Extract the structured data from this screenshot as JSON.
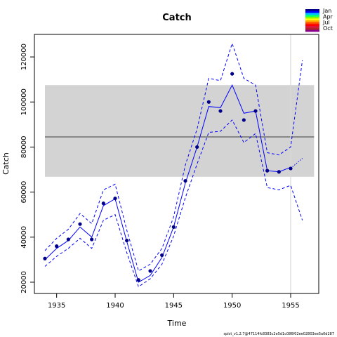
{
  "chart_data": {
    "type": "line",
    "title": "Catch",
    "xlabel": "Time",
    "ylabel": "Catch",
    "xlim": [
      1933.1,
      1957.4
    ],
    "ylim": [
      15000,
      130000
    ],
    "x_ticks": [
      1935,
      1940,
      1945,
      1950,
      1955
    ],
    "y_ticks": [
      20000,
      40000,
      60000,
      80000,
      100000,
      120000
    ],
    "x_tick_labels": [
      "1935",
      "1940",
      "1945",
      "1950",
      "1955"
    ],
    "y_tick_labels": [
      "20000",
      "40000",
      "60000",
      "80000",
      "100000",
      "120000"
    ],
    "grid": false,
    "band": {
      "low": 66800,
      "high": 107500,
      "mean": 84500,
      "x_start": 1934,
      "x_end": 1957
    },
    "vline_x": 1955,
    "observed": {
      "x": [
        1934,
        1935,
        1936,
        1937,
        1938,
        1939,
        1940,
        1941,
        1942,
        1943,
        1944,
        1945,
        1946,
        1947,
        1948,
        1949,
        1950,
        1951,
        1952,
        1953,
        1954,
        1955
      ],
      "y": [
        30500,
        36000,
        39000,
        45800,
        39000,
        55000,
        57200,
        38500,
        21000,
        25000,
        32000,
        44500,
        65000,
        80000,
        100000,
        96000,
        112500,
        92000,
        96000,
        69500,
        69000,
        70500
      ]
    },
    "series": [
      {
        "x": [
          1934,
          1935,
          1936,
          1937,
          1938,
          1939,
          1940,
          1941,
          1942,
          1943,
          1944,
          1945,
          1946,
          1947,
          1948,
          1949,
          1950,
          1951,
          1952,
          1953,
          1954,
          1955
        ],
        "values": [
          30000,
          35000,
          38500,
          44500,
          40000,
          54000,
          57000,
          38000,
          20000,
          23000,
          31000,
          44500,
          64000,
          80000,
          98000,
          97500,
          107500,
          95000,
          96000,
          69500,
          69000,
          71000
        ],
        "style": "solid"
      },
      {
        "x": [
          1934,
          1935,
          1936,
          1937,
          1938,
          1939,
          1940,
          1941,
          1942,
          1943,
          1944,
          1945,
          1946,
          1947,
          1948,
          1949,
          1950,
          1951,
          1952,
          1953,
          1954,
          1955,
          1956
        ],
        "values": [
          34000,
          39500,
          43500,
          50500,
          46000,
          61000,
          63500,
          43000,
          25000,
          28000,
          35000,
          49000,
          72000,
          88000,
          110500,
          109500,
          126000,
          110500,
          107500,
          77500,
          76500,
          80000,
          118500
        ],
        "style": "dashed"
      },
      {
        "x": [
          1934,
          1935,
          1936,
          1937,
          1938,
          1939,
          1940,
          1941,
          1942,
          1943,
          1944,
          1945,
          1946,
          1947,
          1948,
          1949,
          1950,
          1951,
          1952,
          1953,
          1954,
          1955,
          1956
        ],
        "values": [
          27000,
          31500,
          35000,
          39500,
          35000,
          47500,
          50000,
          33000,
          18000,
          21500,
          28000,
          40500,
          57500,
          72500,
          86500,
          87000,
          92000,
          82000,
          86000,
          62000,
          61000,
          63000,
          47500
        ],
        "style": "dashed"
      },
      {
        "x": [
          1955,
          1956
        ],
        "values": [
          70500,
          75000
        ],
        "style": "dotted"
      }
    ],
    "legend": {
      "position": "top-right",
      "labels": [
        "Jan",
        "Apr",
        "Jul",
        "Oct"
      ],
      "colors": [
        "#00008b",
        "#0000ff",
        "#00bfff",
        "#00ff7f",
        "#7fff00",
        "#ffff00",
        "#ffa500",
        "#ff4500",
        "#ff0000",
        "#dc143c",
        "#b22222",
        "#8b008b"
      ]
    },
    "footnote": "spict_v1.2.7@47114fc8383c2e5d1c086f02ee02803ee5a0d287"
  },
  "colors": {
    "line": "#0000ff",
    "point": "#00008b",
    "band": "#d3d3d3",
    "mean": "#6e6e6e",
    "vline": "#d9d9d9"
  }
}
